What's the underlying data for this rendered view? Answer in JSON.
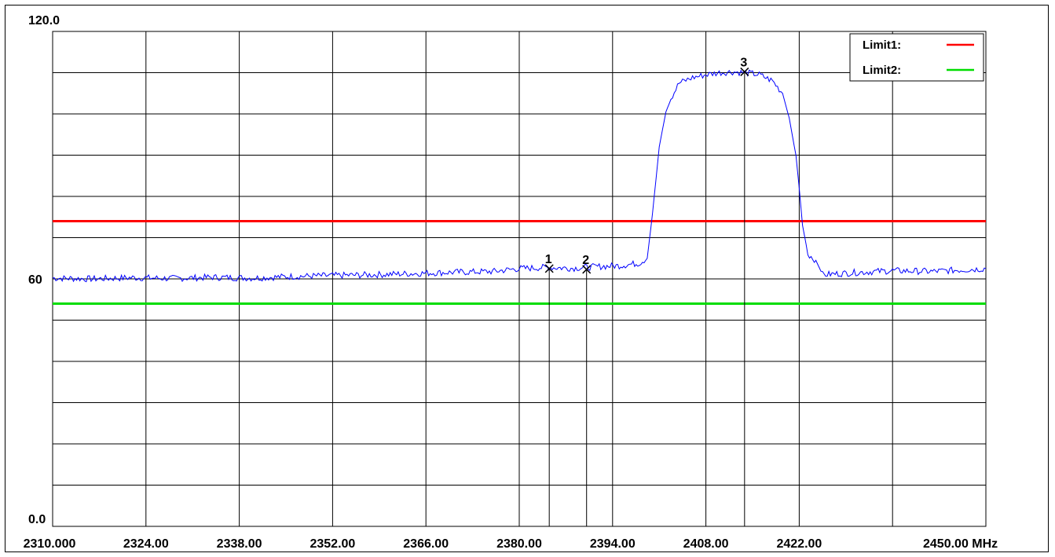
{
  "chart_data": {
    "type": "line",
    "x_unit": "MHz",
    "xlim": [
      2310,
      2450
    ],
    "ylim": [
      0,
      120
    ],
    "y_tick_labels": [
      {
        "value": 120,
        "label": "120.0"
      },
      {
        "value": 60,
        "label": "60"
      },
      {
        "value": 0,
        "label": "0.0"
      }
    ],
    "x_tick_labels": [
      {
        "value": 2310,
        "label": "2310.000"
      },
      {
        "value": 2324,
        "label": "2324.00"
      },
      {
        "value": 2338,
        "label": "2338.00"
      },
      {
        "value": 2352,
        "label": "2352.00"
      },
      {
        "value": 2366,
        "label": "2366.00"
      },
      {
        "value": 2380,
        "label": "2380.00"
      },
      {
        "value": 2394,
        "label": "2394.00"
      },
      {
        "value": 2408,
        "label": "2408.00"
      },
      {
        "value": 2422,
        "label": "2422.00"
      },
      {
        "value": 2450,
        "label": "2450.00 MHz"
      }
    ],
    "grid": true,
    "legend": {
      "position": "top-right",
      "entries": [
        {
          "label": "Limit1:",
          "color": "#ff0000"
        },
        {
          "label": "Limit2:",
          "color": "#00dd00"
        }
      ]
    },
    "limit_lines": [
      {
        "name": "Limit1",
        "value": 74,
        "color": "#ff0000"
      },
      {
        "name": "Limit2",
        "value": 54,
        "color": "#00dd00"
      }
    ],
    "series": [
      {
        "color": "#0000ff",
        "x": [
          2310,
          2316,
          2322,
          2328,
          2334,
          2340,
          2346,
          2352,
          2358,
          2364,
          2370,
          2376,
          2380,
          2384,
          2388,
          2392,
          2395,
          2398,
          2399.2,
          2400,
          2401,
          2402,
          2403,
          2404,
          2406,
          2408,
          2410,
          2412,
          2414,
          2416,
          2418,
          2419.5,
          2420.5,
          2421.5,
          2422,
          2422.5,
          2423.3,
          2424.5,
          2425.5,
          2430,
          2436,
          2442,
          2450
        ],
        "y": [
          60.2,
          60.0,
          60.3,
          60.1,
          60.4,
          60.2,
          60.6,
          60.8,
          61.0,
          61.3,
          61.6,
          61.8,
          62.5,
          62.8,
          62.6,
          63.0,
          63.2,
          63.8,
          65.0,
          76.0,
          92.0,
          100.5,
          104.5,
          107.5,
          108.8,
          109.5,
          110.0,
          110.2,
          110.0,
          109.5,
          108.0,
          105.0,
          99.0,
          90.0,
          82.0,
          73.0,
          66.0,
          64.5,
          61.0,
          61.5,
          62.0,
          61.8,
          62.5
        ]
      }
    ],
    "markers": [
      {
        "label": "1",
        "x": 2384.5,
        "y": 62.5
      },
      {
        "label": "2",
        "x": 2390.1,
        "y": 62.3
      },
      {
        "label": "3",
        "x": 2413.8,
        "y": 110.2
      }
    ]
  }
}
